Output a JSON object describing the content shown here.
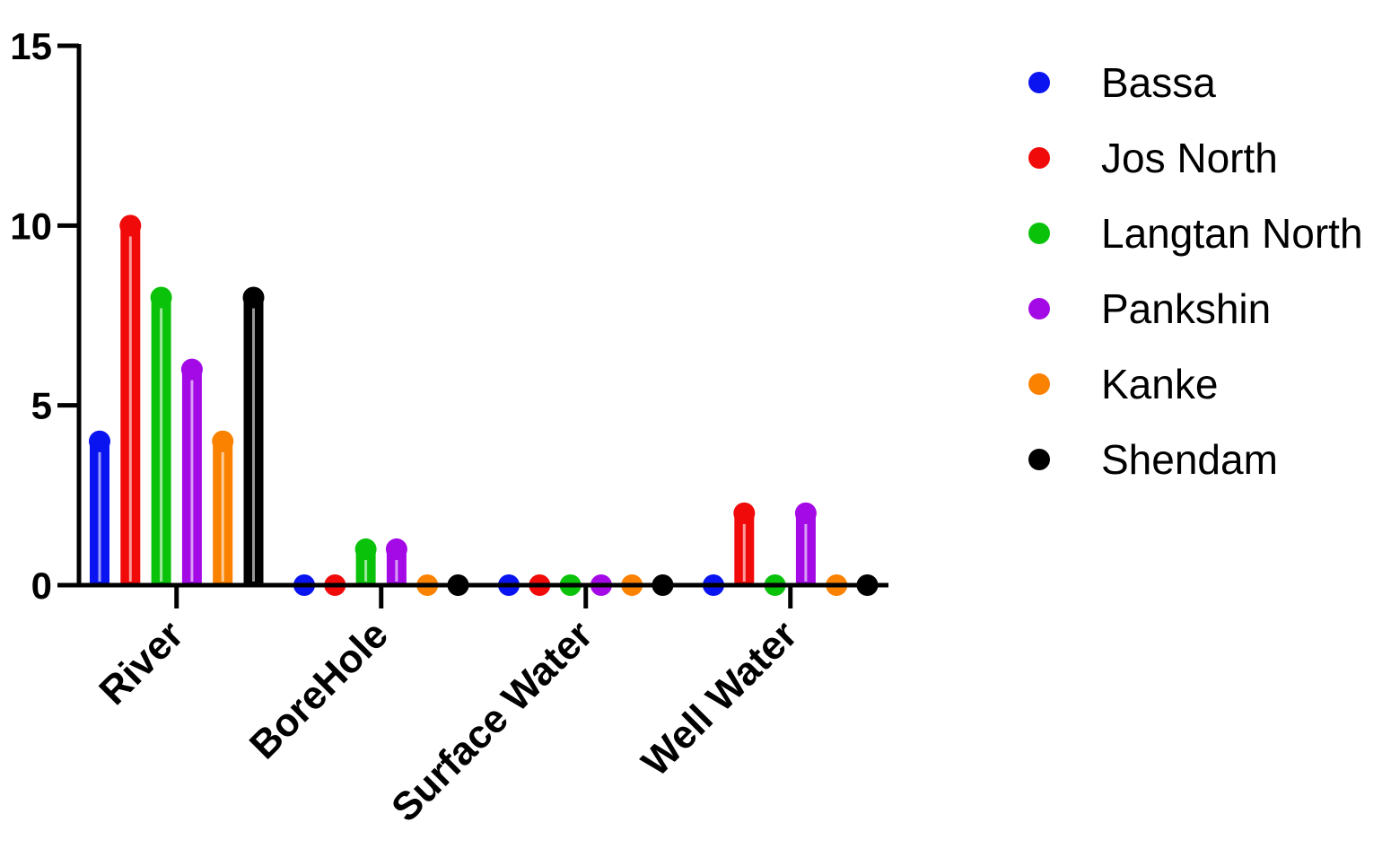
{
  "chart_data": {
    "type": "bar",
    "style": "lollipop",
    "title": "",
    "xlabel": "",
    "ylabel": "",
    "ylim": [
      0,
      15
    ],
    "yticks": [
      0,
      5,
      10,
      15
    ],
    "grid": false,
    "legend_position": "right",
    "categories": [
      "River",
      "BoreHole",
      "Surface Water",
      "Well Water"
    ],
    "series": [
      {
        "name": "Bassa",
        "color": "#0a14f0",
        "values": [
          4,
          0,
          0,
          0
        ]
      },
      {
        "name": "Jos North",
        "color": "#f00a0a",
        "values": [
          10,
          0,
          0,
          2
        ]
      },
      {
        "name": "Langtan North",
        "color": "#0ac20a",
        "values": [
          8,
          1,
          0,
          0
        ]
      },
      {
        "name": "Pankshin",
        "color": "#a30ae6",
        "values": [
          6,
          1,
          0,
          2
        ]
      },
      {
        "name": "Kanke",
        "color": "#fa8200",
        "values": [
          4,
          0,
          0,
          0
        ]
      },
      {
        "name": "Shendam",
        "color": "#000000",
        "values": [
          8,
          0,
          0,
          0
        ]
      }
    ]
  }
}
